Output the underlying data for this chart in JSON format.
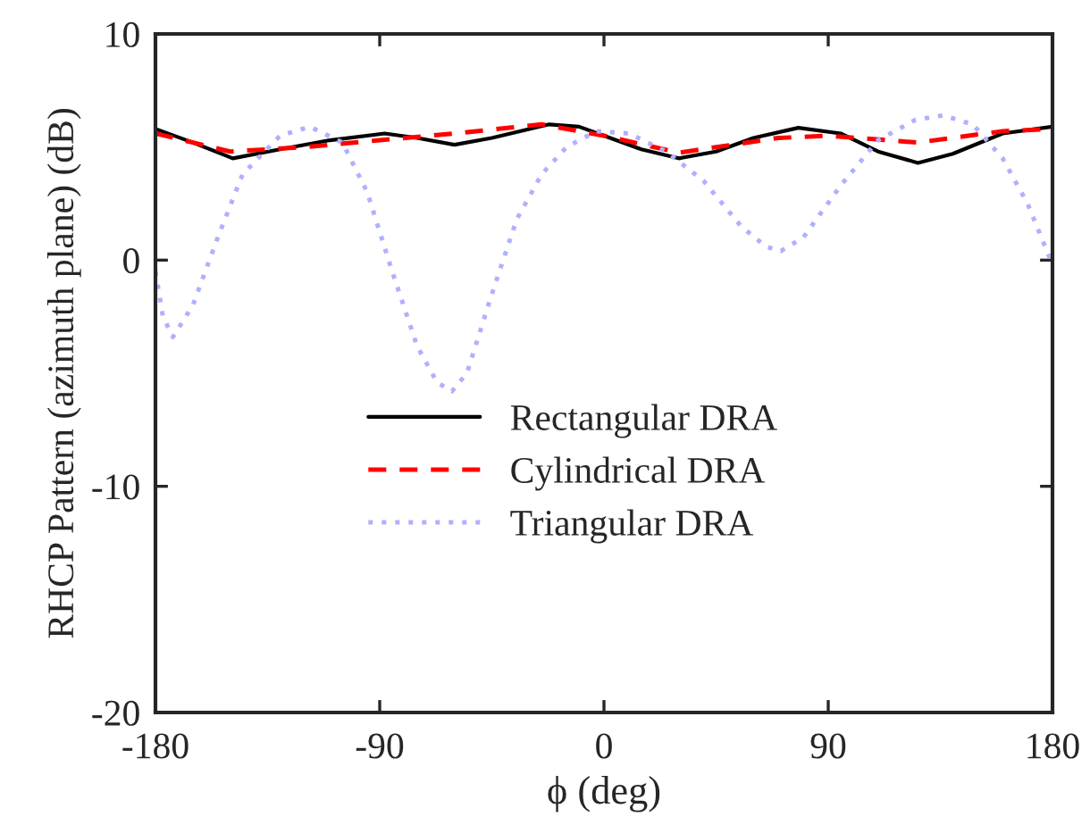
{
  "chart_data": {
    "type": "line",
    "xlabel": "ϕ (deg)",
    "ylabel": "RHCP Pattern (azimuth plane) (dB)",
    "xlim": [
      -180,
      180
    ],
    "xticks": [
      -180,
      -90,
      0,
      90,
      180
    ],
    "ylim": [
      -20,
      10
    ],
    "yticks": [
      -20,
      -10,
      0,
      10
    ],
    "grid": false,
    "legend": "bottom left",
    "marker": "none",
    "series": [
      {
        "name": "Rectangular DRA",
        "color": "#000000",
        "line_style": "solid",
        "x": [
          -180,
          -165,
          -149,
          -130,
          -110,
          -88,
          -75,
          -60,
          -45,
          -22,
          -10,
          0,
          15,
          30,
          45,
          60,
          78,
          95,
          110,
          126,
          140,
          160,
          180
        ],
        "values": [
          5.8,
          5.2,
          4.5,
          4.9,
          5.3,
          5.6,
          5.4,
          5.1,
          5.4,
          6.0,
          5.9,
          5.5,
          4.9,
          4.5,
          4.8,
          5.4,
          5.85,
          5.6,
          4.8,
          4.3,
          4.7,
          5.6,
          5.9
        ]
      },
      {
        "name": "Cylindrical DRA",
        "color": "#ff0000",
        "line_style": "dashed",
        "x": [
          -180,
          -150,
          -120,
          -90,
          -60,
          -25,
          0,
          30,
          70,
          90,
          126,
          160,
          180
        ],
        "values": [
          5.6,
          4.8,
          5.0,
          5.3,
          5.6,
          6.0,
          5.5,
          4.75,
          5.4,
          5.5,
          5.2,
          5.7,
          5.8
        ]
      },
      {
        "name": "Triangular DRA",
        "color": "#b0b0ff",
        "line_style": "dotted",
        "x": [
          -180,
          -177,
          -173,
          -165,
          -155,
          -145,
          -130,
          -118,
          -105,
          -95,
          -85,
          -75,
          -67,
          -61,
          -55,
          -45,
          -35,
          -25,
          -15,
          -3,
          10,
          25,
          40,
          55,
          65,
          71,
          80,
          95,
          110,
          125,
          136,
          148,
          160,
          170,
          180
        ],
        "values": [
          -0.5,
          -2.5,
          -3.4,
          -2,
          1,
          3.8,
          5.5,
          5.9,
          5.2,
          3,
          -0.5,
          -3.8,
          -5.4,
          -5.8,
          -5,
          -1.5,
          1.8,
          3.8,
          5,
          5.7,
          5.6,
          4.8,
          3.5,
          1.5,
          0.6,
          0.4,
          1,
          3.3,
          5.3,
          6.2,
          6.4,
          6,
          4.5,
          2.5,
          -0.2
        ]
      }
    ]
  }
}
